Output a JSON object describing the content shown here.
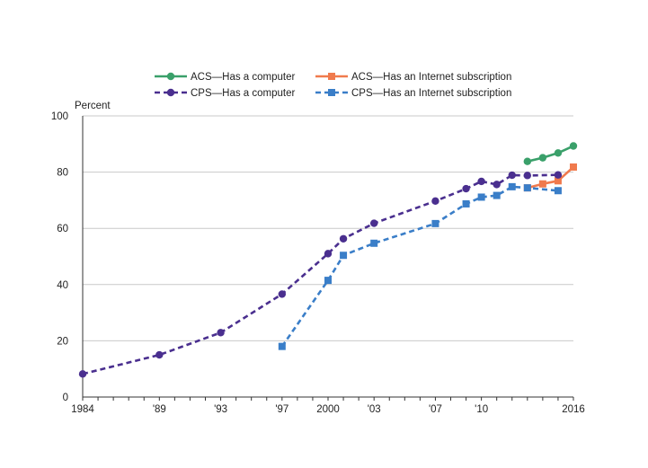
{
  "chart_data": {
    "type": "line",
    "ylabel": "Percent",
    "ylim": [
      0,
      100
    ],
    "yticks": [
      0,
      20,
      40,
      60,
      80,
      100
    ],
    "xlim": [
      1984,
      2016
    ],
    "xticks": [
      {
        "value": 1984,
        "label": "1984"
      },
      {
        "value": 1989,
        "label": "'89"
      },
      {
        "value": 1993,
        "label": "'93"
      },
      {
        "value": 1997,
        "label": "'97"
      },
      {
        "value": 2000,
        "label": "2000"
      },
      {
        "value": 2003,
        "label": "'03"
      },
      {
        "value": 2007,
        "label": "'07"
      },
      {
        "value": 2010,
        "label": "'10"
      },
      {
        "value": 2016,
        "label": "2016"
      }
    ],
    "grid": "horizontal",
    "legend_position": "top",
    "series": [
      {
        "name": "ACS—Has a computer",
        "color": "#3aa06a",
        "marker": "circle",
        "line": "solid",
        "x": [
          2013,
          2014,
          2015,
          2016
        ],
        "y": [
          83.8,
          85.1,
          86.8,
          89.3
        ]
      },
      {
        "name": "ACS—Has an Internet subscription",
        "color": "#f07a4d",
        "marker": "square",
        "line": "solid",
        "x": [
          2013,
          2014,
          2015,
          2016
        ],
        "y": [
          74.4,
          75.8,
          76.9,
          81.8
        ]
      },
      {
        "name": "CPS—Has a computer",
        "color": "#4a2f8f",
        "marker": "circle",
        "line": "dashed",
        "x": [
          1984,
          1989,
          1993,
          1997,
          2000,
          2001,
          2003,
          2007,
          2009,
          2010,
          2011,
          2012,
          2013,
          2015
        ],
        "y": [
          8.2,
          15.0,
          22.9,
          36.6,
          51.0,
          56.3,
          61.8,
          69.7,
          74.1,
          76.7,
          75.6,
          78.9,
          78.8,
          79.0
        ]
      },
      {
        "name": "CPS—Has an Internet subscription",
        "color": "#3a7ec8",
        "marker": "square",
        "line": "dashed",
        "x": [
          1997,
          2000,
          2001,
          2003,
          2007,
          2009,
          2010,
          2011,
          2012,
          2013,
          2015
        ],
        "y": [
          18.0,
          41.5,
          50.4,
          54.7,
          61.7,
          68.7,
          71.1,
          71.7,
          74.8,
          74.4,
          73.4
        ]
      }
    ]
  }
}
